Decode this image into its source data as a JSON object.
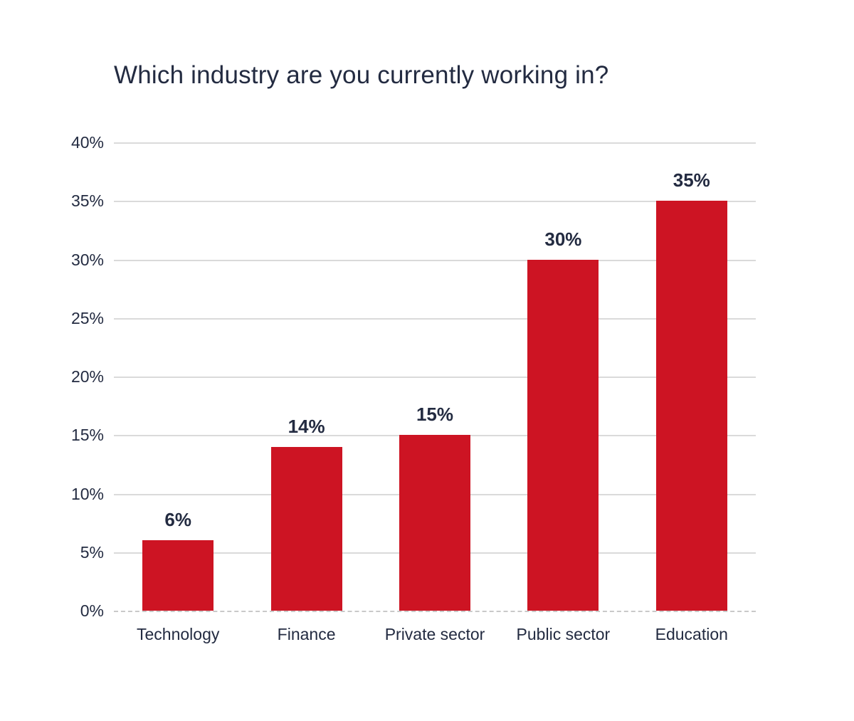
{
  "page": {
    "background": "#ffffff"
  },
  "chart_data": {
    "type": "bar",
    "title": "Which industry are you currently working in?",
    "categories": [
      "Technology",
      "Finance",
      "Private sector",
      "Public sector",
      "Education"
    ],
    "values": [
      6,
      14,
      15,
      30,
      35
    ],
    "data_labels": [
      "6%",
      "14%",
      "15%",
      "30%",
      "35%"
    ],
    "xlabel": "",
    "ylabel": "",
    "ylim": [
      0,
      40
    ],
    "ytick_step": 5,
    "ytick_labels_top_to_bottom": [
      "40%",
      "35%",
      "30%",
      "25%",
      "20%",
      "15%",
      "10%",
      "5%",
      "0%"
    ],
    "grid": true,
    "legend": false,
    "colors": {
      "bar": "#CD1423",
      "title_text": "#232B41",
      "axis_text": "#232B41",
      "label_text": "#232B41",
      "gridline": "#DADADA",
      "baseline": "#C9C9C9"
    }
  }
}
